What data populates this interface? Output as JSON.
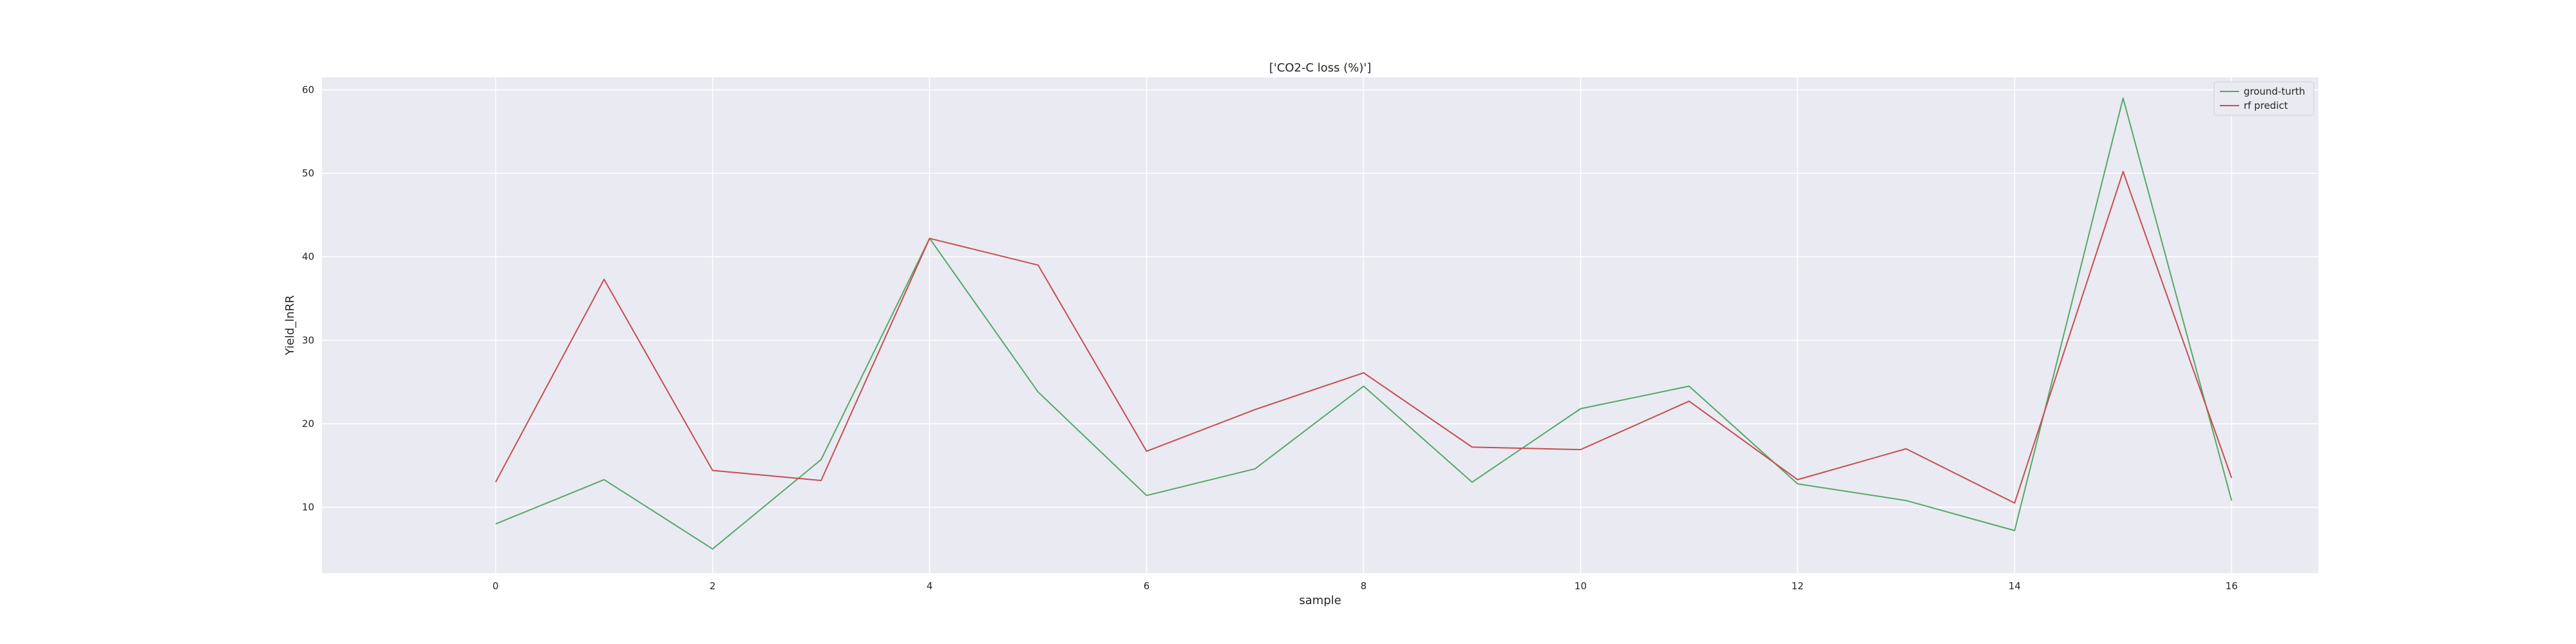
{
  "chart_data": {
    "type": "line",
    "title": "['CO2-C loss (%)']",
    "xlabel": "sample",
    "ylabel": "Yield_lnRR",
    "x": [
      0,
      1,
      2,
      3,
      4,
      5,
      6,
      7,
      8,
      9,
      10,
      11,
      12,
      13,
      14,
      15,
      16
    ],
    "xlim": [
      -1.6,
      16.8
    ],
    "ylim": [
      2.1,
      61.5
    ],
    "xticks": [
      0,
      2,
      4,
      6,
      8,
      10,
      12,
      14,
      16
    ],
    "yticks": [
      10,
      20,
      30,
      40,
      50,
      60
    ],
    "grid": true,
    "legend_position": "top-right",
    "series": [
      {
        "name": "ground-turth",
        "color": "#55a868",
        "values": [
          8.0,
          13.3,
          5.0,
          15.7,
          42.2,
          23.8,
          11.4,
          14.6,
          24.5,
          13.0,
          21.8,
          24.5,
          12.8,
          10.8,
          7.2,
          59.0,
          10.8
        ]
      },
      {
        "name": "rf predict",
        "color": "#c44e52",
        "values": [
          13.0,
          37.3,
          14.4,
          13.2,
          42.2,
          39.0,
          16.7,
          21.7,
          26.1,
          17.2,
          16.9,
          22.7,
          13.3,
          17.0,
          10.5,
          50.2,
          13.5
        ]
      }
    ],
    "background_color": "#eaeaf2",
    "grid_color": "#ffffff"
  }
}
